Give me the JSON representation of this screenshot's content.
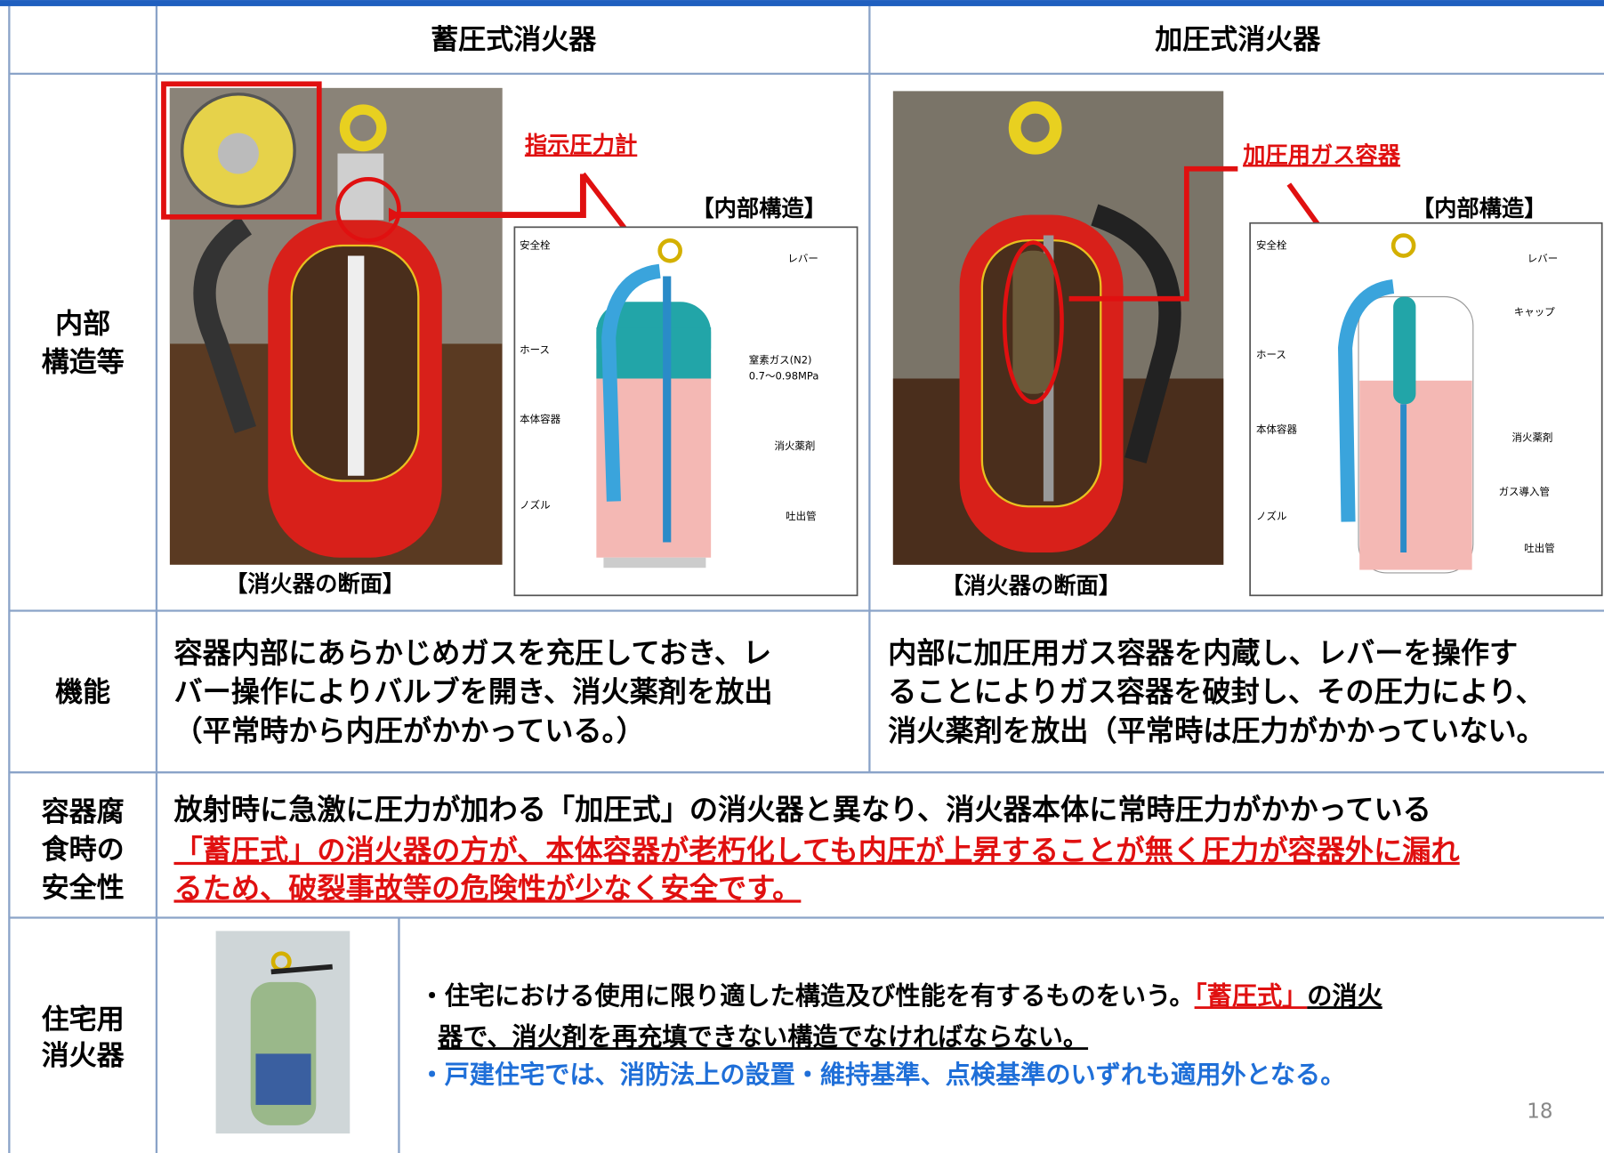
{
  "header": {
    "left": "蓄圧式消火器",
    "right": "加圧式消火器"
  },
  "structure": {
    "label": [
      "内部",
      "構造等"
    ],
    "left": {
      "callout": "指示圧力計",
      "diagram_title": "【内部構造】",
      "caption": "【消火器の断面】",
      "parts": [
        "安全栓",
        "レバー",
        "ホース",
        "本体容器",
        "ノズル",
        "窒素ガス(N2)",
        "0.7〜0.98MPa",
        "消火薬剤",
        "吐出管"
      ]
    },
    "right": {
      "callout": "加圧用ガス容器",
      "diagram_title": "【内部構造】",
      "caption": "【消火器の断面】",
      "parts": [
        "安全栓",
        "レバー",
        "キャップ",
        "ホース",
        "本体容器",
        "消火薬剤",
        "ガス導入管",
        "ノズル",
        "吐出管"
      ]
    }
  },
  "function": {
    "label": "機能",
    "left": [
      "容器内部にあらかじめガスを充圧しておき、レ",
      "バー操作によりバルブを開き、消火薬剤を放出",
      "（平常時から内圧がかかっている。）"
    ],
    "right": [
      "内部に加圧用ガス容器を内蔵し、レバーを操作す",
      "ることによりガス容器を破封し、その圧力により、",
      "消火薬剤を放出（平常時は圧力がかかっていない。"
    ]
  },
  "safety": {
    "label": [
      "容器腐",
      "食時の",
      "安全性"
    ],
    "lines": [
      "放射時に急激に圧力が加わる「加圧式」の消火器と異なり、消火器本体に常時圧力がかかっている",
      "「蓄圧式」の消火器の方が、本体容器が老朽化しても内圧が上昇することが無く圧力が容器外に漏れ",
      "るため、破裂事故等の危険性が少なく安全です。"
    ]
  },
  "residential": {
    "label": [
      "住宅用",
      "消火器"
    ],
    "bullet1": [
      [
        "・住宅における使用に限り適した構造及び性能を有するものをいう。",
        "「蓄圧式」",
        "の消火"
      ],
      [
        "器で、消火剤を再充填できない構造でなければならない。"
      ]
    ],
    "bullet2": "・戸建住宅では、消防法上の設置・維持基準、点検基準のいずれも適用外となる。"
  },
  "page_number": "18"
}
